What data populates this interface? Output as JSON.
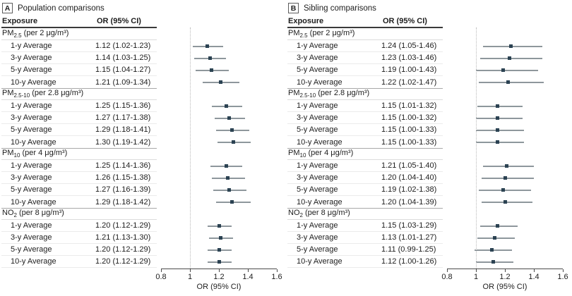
{
  "colors": {
    "marker": "#2b4252",
    "ci_line": "#8e979c",
    "reference_line": "#b8b8b8",
    "header_rule": "#3a3a3a",
    "group_rule": "#a8a8a8",
    "row_rule": "#ebebeb"
  },
  "chart_data": {
    "type": "forest",
    "panels": [
      {
        "letter": "A",
        "title": "Population comparisons",
        "col_exposure": "Exposure",
        "col_or": "OR (95% CI)",
        "xaxis": {
          "label": "OR (95% CI)",
          "range": [
            0.8,
            1.6
          ],
          "ref_line": 1,
          "ticks": [
            0.8,
            1,
            1.2,
            1.4,
            1.6
          ],
          "tick_labels": [
            "0.8",
            "1",
            "1.2",
            "1.4",
            "1.6"
          ]
        },
        "groups": [
          {
            "label_pre": "PM",
            "label_sub": "2.5",
            "label_post": " (per 2 μg/m³)",
            "rows": [
              {
                "label": "1-y Average",
                "or_text": "1.12 (1.02-1.23)",
                "or": 1.12,
                "lo": 1.02,
                "hi": 1.23
              },
              {
                "label": "3-y Average",
                "or_text": "1.14 (1.03-1.25)",
                "or": 1.14,
                "lo": 1.03,
                "hi": 1.25
              },
              {
                "label": "5-y Average",
                "or_text": "1.15 (1.04-1.27)",
                "or": 1.15,
                "lo": 1.04,
                "hi": 1.27
              },
              {
                "label": "10-y Average",
                "or_text": "1.21 (1.09-1.34)",
                "or": 1.21,
                "lo": 1.09,
                "hi": 1.34
              }
            ]
          },
          {
            "label_pre": "PM",
            "label_sub": "2.5-10",
            "label_post": " (per 2.8 μg/m³)",
            "rows": [
              {
                "label": "1-y Average",
                "or_text": "1.25 (1.15-1.36)",
                "or": 1.25,
                "lo": 1.15,
                "hi": 1.36
              },
              {
                "label": "3-y Average",
                "or_text": "1.27 (1.17-1.38)",
                "or": 1.27,
                "lo": 1.17,
                "hi": 1.38
              },
              {
                "label": "5-y Average",
                "or_text": "1.29 (1.18-1.41)",
                "or": 1.29,
                "lo": 1.18,
                "hi": 1.41
              },
              {
                "label": "10-y Average",
                "or_text": "1.30 (1.19-1.42)",
                "or": 1.3,
                "lo": 1.19,
                "hi": 1.42
              }
            ]
          },
          {
            "label_pre": "PM",
            "label_sub": "10",
            "label_post": " (per 4 μg/m³)",
            "rows": [
              {
                "label": "1-y Average",
                "or_text": "1.25 (1.14-1.36)",
                "or": 1.25,
                "lo": 1.14,
                "hi": 1.36
              },
              {
                "label": "3-y Average",
                "or_text": "1.26 (1.15-1.38)",
                "or": 1.26,
                "lo": 1.15,
                "hi": 1.38
              },
              {
                "label": "5-y Average",
                "or_text": "1.27 (1.16-1.39)",
                "or": 1.27,
                "lo": 1.16,
                "hi": 1.39
              },
              {
                "label": "10-y Average",
                "or_text": "1.29 (1.18-1.42)",
                "or": 1.29,
                "lo": 1.18,
                "hi": 1.42
              }
            ]
          },
          {
            "label_pre": "NO",
            "label_sub": "2",
            "label_post": " (per 8 μg/m³)",
            "rows": [
              {
                "label": "1-y Average",
                "or_text": "1.20 (1.12-1.29)",
                "or": 1.2,
                "lo": 1.12,
                "hi": 1.29
              },
              {
                "label": "3-y Average",
                "or_text": "1.21 (1.13-1.30)",
                "or": 1.21,
                "lo": 1.13,
                "hi": 1.3
              },
              {
                "label": "5-y Average",
                "or_text": "1.20 (1.12-1.29)",
                "or": 1.2,
                "lo": 1.12,
                "hi": 1.29
              },
              {
                "label": "10-y Average",
                "or_text": "1.20 (1.12-1.29)",
                "or": 1.2,
                "lo": 1.12,
                "hi": 1.29
              }
            ]
          }
        ]
      },
      {
        "letter": "B",
        "title": "Sibling comparisons",
        "col_exposure": "Exposure",
        "col_or": "OR (95% CI)",
        "xaxis": {
          "label": "OR (95% CI)",
          "range": [
            0.8,
            1.6
          ],
          "ref_line": 1,
          "ticks": [
            0.8,
            1,
            1.2,
            1.4,
            1.6
          ],
          "tick_labels": [
            "0.8",
            "1",
            "1.2",
            "1.4",
            "1.6"
          ]
        },
        "groups": [
          {
            "label_pre": "PM",
            "label_sub": "2.5",
            "label_post": " (per 2 μg/m³)",
            "rows": [
              {
                "label": "1-y Average",
                "or_text": "1.24 (1.05-1.46)",
                "or": 1.24,
                "lo": 1.05,
                "hi": 1.46
              },
              {
                "label": "3-y Average",
                "or_text": "1.23 (1.03-1.46)",
                "or": 1.23,
                "lo": 1.03,
                "hi": 1.46
              },
              {
                "label": "5-y Average",
                "or_text": "1.19 (1.00-1.43)",
                "or": 1.19,
                "lo": 1.0,
                "hi": 1.43
              },
              {
                "label": "10-y Average",
                "or_text": "1.22 (1.02-1.47)",
                "or": 1.22,
                "lo": 1.02,
                "hi": 1.47
              }
            ]
          },
          {
            "label_pre": "PM",
            "label_sub": "2.5-10",
            "label_post": " (per 2.8 μg/m³)",
            "rows": [
              {
                "label": "1-y Average",
                "or_text": "1.15 (1.01-1.32)",
                "or": 1.15,
                "lo": 1.01,
                "hi": 1.32
              },
              {
                "label": "3-y Average",
                "or_text": "1.15 (1.00-1.32)",
                "or": 1.15,
                "lo": 1.0,
                "hi": 1.32
              },
              {
                "label": "5-y Average",
                "or_text": "1.15 (1.00-1.33)",
                "or": 1.15,
                "lo": 1.0,
                "hi": 1.33
              },
              {
                "label": "10-y Average",
                "or_text": "1.15 (1.00-1.33)",
                "or": 1.15,
                "lo": 1.0,
                "hi": 1.33
              }
            ]
          },
          {
            "label_pre": "PM",
            "label_sub": "10",
            "label_post": " (per 4 μg/m³)",
            "rows": [
              {
                "label": "1-y Average",
                "or_text": "1.21 (1.05-1.40)",
                "or": 1.21,
                "lo": 1.05,
                "hi": 1.4
              },
              {
                "label": "3-y Average",
                "or_text": "1.20 (1.04-1.40)",
                "or": 1.2,
                "lo": 1.04,
                "hi": 1.4
              },
              {
                "label": "5-y Average",
                "or_text": "1.19 (1.02-1.38)",
                "or": 1.19,
                "lo": 1.02,
                "hi": 1.38
              },
              {
                "label": "10-y Average",
                "or_text": "1.20 (1.04-1.39)",
                "or": 1.2,
                "lo": 1.04,
                "hi": 1.39
              }
            ]
          },
          {
            "label_pre": "NO",
            "label_sub": "2",
            "label_post": " (per 8 μg/m³)",
            "rows": [
              {
                "label": "1-y Average",
                "or_text": "1.15 (1.03-1.29)",
                "or": 1.15,
                "lo": 1.03,
                "hi": 1.29
              },
              {
                "label": "3-y Average",
                "or_text": "1.13 (1.01-1.27)",
                "or": 1.13,
                "lo": 1.01,
                "hi": 1.27
              },
              {
                "label": "5-y Average",
                "or_text": "1.11 (0.99-1.25)",
                "or": 1.11,
                "lo": 0.99,
                "hi": 1.25
              },
              {
                "label": "10-y Average",
                "or_text": "1.12 (1.00-1.26)",
                "or": 1.12,
                "lo": 1.0,
                "hi": 1.26
              }
            ]
          }
        ]
      }
    ]
  }
}
